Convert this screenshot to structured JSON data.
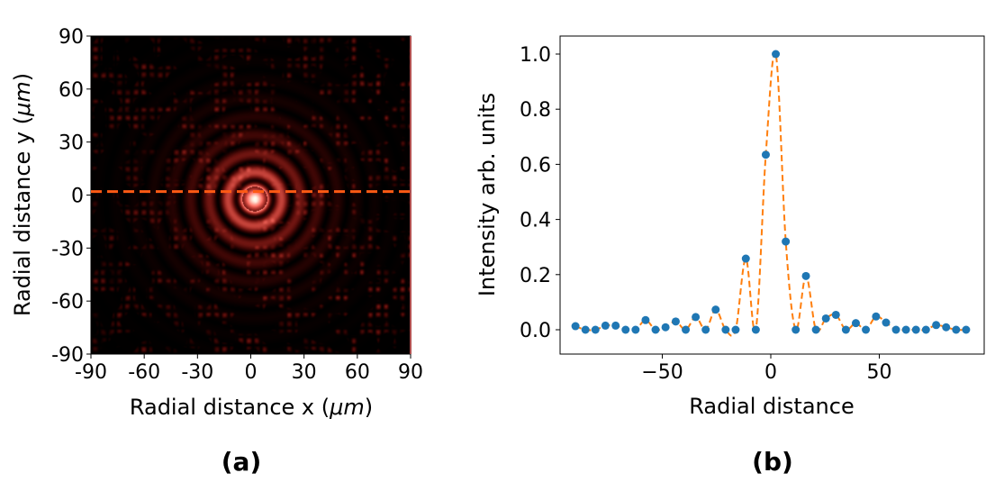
{
  "chart_data": [
    {
      "panel": "(a)",
      "type": "heatmap",
      "xlabel": "Radial distance x (",
      "xlabel_unit": "μm",
      "ylabel": "Radial distance y (",
      "ylabel_unit": "μm",
      "label_close": ")",
      "xlim": [
        -90,
        90
      ],
      "ylim": [
        90,
        -90
      ],
      "xticks": [
        "-90",
        "-60",
        "-30",
        "0",
        "30",
        "60",
        "90"
      ],
      "yticks": [
        "-90",
        "-60",
        "-30",
        "0",
        "30",
        "60",
        "90"
      ],
      "colormap": "black-to-salmon-to-white",
      "annotation_line": {
        "y": 2,
        "style": "dashed",
        "color": "#ff5a14"
      }
    },
    {
      "panel": "(b)",
      "type": "scatter",
      "xlabel": "Radial distance",
      "ylabel": "Intensity arb. units",
      "xlim": [
        -95,
        95
      ],
      "ylim": [
        -0.09,
        1.05
      ],
      "xticks": [
        "−50",
        "0",
        "50"
      ],
      "yticks": [
        "0.0",
        "0.2",
        "0.4",
        "0.6",
        "0.8",
        "1.0"
      ],
      "grid": false,
      "marker_color": "#1f77b4",
      "fit_color": "#ff7f0e",
      "fit_style": "dashed interpolation",
      "x": [
        -90.0,
        -85.4,
        -80.8,
        -76.2,
        -71.5,
        -66.9,
        -62.3,
        -57.7,
        -53.1,
        -48.5,
        -43.8,
        -39.2,
        -34.6,
        -30.0,
        -25.4,
        -20.8,
        -16.2,
        -11.5,
        -6.9,
        -2.3,
        2.3,
        6.9,
        11.5,
        16.2,
        20.8,
        25.4,
        30.0,
        34.6,
        39.2,
        43.8,
        48.5,
        53.1,
        57.7,
        62.3,
        66.9,
        71.5,
        76.2,
        80.8,
        85.4,
        90.0
      ],
      "y": [
        0.013,
        0,
        0,
        0.015,
        0.015,
        0,
        0,
        0.035,
        0,
        0.009,
        0.03,
        0,
        0.046,
        0,
        0.073,
        0,
        0,
        0.258,
        0,
        0.635,
        1.0,
        0.32,
        0,
        0.195,
        0,
        0.041,
        0.054,
        0,
        0.024,
        0,
        0.048,
        0.026,
        0,
        0,
        0,
        0,
        0.017,
        0.009,
        0,
        0
      ]
    }
  ]
}
